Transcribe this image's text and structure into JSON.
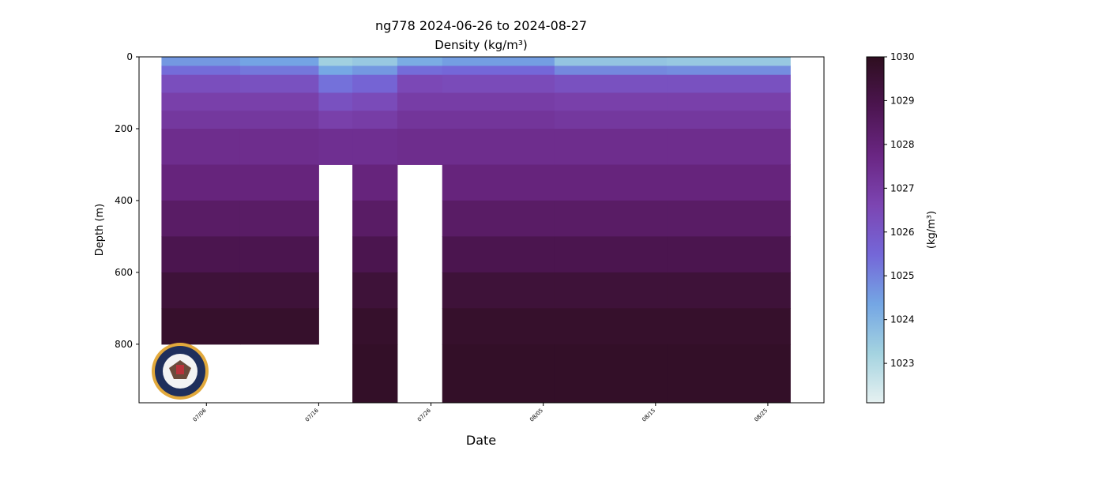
{
  "chart_data": {
    "type": "heatmap",
    "title": "ng778 2024-06-26 to 2024-08-27",
    "subtitle": "Density (kg/m³)",
    "x_label": "Date",
    "y_label": "Depth (m)",
    "colorbar_label": "(kg/m³)",
    "x": [
      "07/02",
      "07/09",
      "07/16",
      "07/19",
      "07/23",
      "07/27",
      "08/06",
      "08/16",
      "08/27"
    ],
    "y": [
      0,
      25,
      50,
      100,
      150,
      200,
      300,
      400,
      500,
      600,
      700,
      800,
      963
    ],
    "z": [
      [
        1024.6,
        1025.4,
        1026.3,
        1026.8,
        1027.1,
        1027.5,
        1027.9,
        1028.4,
        1028.9,
        1029.4,
        1029.7,
        null
      ],
      [
        1024.4,
        1025.2,
        1026.2,
        1026.8,
        1027.1,
        1027.5,
        1027.9,
        1028.4,
        1028.9,
        1029.4,
        1029.7,
        null
      ],
      [
        1023.3,
        1024.3,
        1025.3,
        1026.2,
        1026.8,
        1027.4,
        null,
        null,
        null,
        null,
        null,
        null
      ],
      [
        1023.5,
        1024.6,
        1025.6,
        1026.4,
        1026.9,
        1027.4,
        1027.9,
        1028.4,
        1028.9,
        1029.4,
        1029.7,
        1029.8
      ],
      [
        1024.2,
        1025.4,
        1026.5,
        1026.9,
        1027.2,
        1027.5,
        null,
        null,
        null,
        null,
        null,
        null
      ],
      [
        1024.5,
        1025.5,
        1026.4,
        1026.9,
        1027.2,
        1027.5,
        1027.9,
        1028.4,
        1028.9,
        1029.4,
        1029.7,
        1029.8
      ],
      [
        1023.6,
        1024.9,
        1026.2,
        1026.8,
        1027.1,
        1027.5,
        1027.9,
        1028.4,
        1028.9,
        1029.4,
        1029.7,
        1029.8
      ],
      [
        1023.5,
        1024.8,
        1026.2,
        1026.8,
        1027.1,
        1027.5,
        1027.9,
        1028.4,
        1028.9,
        1029.4,
        1029.7,
        1029.8
      ]
    ],
    "xlim": [
      "06/30",
      "08/30"
    ],
    "xticks": [
      "07/06",
      "07/16",
      "07/26",
      "08/05",
      "08/15",
      "08/25"
    ],
    "ylim": [
      963,
      0
    ],
    "yticks": [
      0,
      200,
      400,
      600,
      800
    ],
    "clim": [
      1022.1,
      1030
    ],
    "cticks": [
      1023,
      1024,
      1025,
      1026,
      1027,
      1028,
      1029,
      1030
    ],
    "colormap": [
      "#e6f1f1",
      "#a4d3e0",
      "#74a6e4",
      "#7467d8",
      "#7c45b2",
      "#6a2683",
      "#4c1550",
      "#2e0e1f"
    ]
  }
}
